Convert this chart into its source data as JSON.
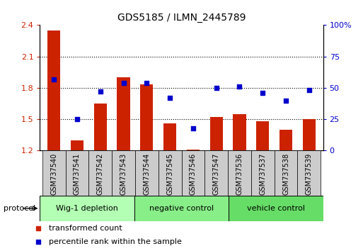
{
  "title": "GDS5185 / ILMN_2445789",
  "samples": [
    "GSM737540",
    "GSM737541",
    "GSM737542",
    "GSM737543",
    "GSM737544",
    "GSM737545",
    "GSM737546",
    "GSM737547",
    "GSM737536",
    "GSM737537",
    "GSM737538",
    "GSM737539"
  ],
  "bar_values": [
    2.35,
    1.3,
    1.65,
    1.9,
    1.83,
    1.46,
    1.21,
    1.52,
    1.55,
    1.48,
    1.4,
    1.5
  ],
  "dot_values": [
    57,
    25,
    47,
    54,
    54,
    42,
    18,
    50,
    51,
    46,
    40,
    48
  ],
  "bar_color": "#cc2200",
  "dot_color": "#0000cc",
  "ylim_left": [
    1.2,
    2.4
  ],
  "ylim_right": [
    0,
    100
  ],
  "yticks_left": [
    1.2,
    1.5,
    1.8,
    2.1,
    2.4
  ],
  "yticks_right": [
    0,
    25,
    50,
    75,
    100
  ],
  "ytick_labels_left": [
    "1.2",
    "1.5",
    "1.8",
    "2.1",
    "2.4"
  ],
  "ytick_labels_right": [
    "0",
    "25",
    "50",
    "75",
    "100%"
  ],
  "groups": [
    {
      "label": "Wig-1 depletion",
      "start": 0,
      "end": 4,
      "color": "#b3ffb3"
    },
    {
      "label": "negative control",
      "start": 4,
      "end": 8,
      "color": "#88ee88"
    },
    {
      "label": "vehicle control",
      "start": 8,
      "end": 12,
      "color": "#66dd66"
    }
  ],
  "protocol_label": "protocol",
  "legend_bar_label": "transformed count",
  "legend_dot_label": "percentile rank within the sample",
  "bar_base": 1.2,
  "tick_label_color_left": "#cc2200",
  "tick_label_color_right": "#0000cc",
  "bar_width": 0.55,
  "xtick_box_color": "#cccccc",
  "grid_dotted_ticks": [
    1.5,
    1.8,
    2.1
  ]
}
